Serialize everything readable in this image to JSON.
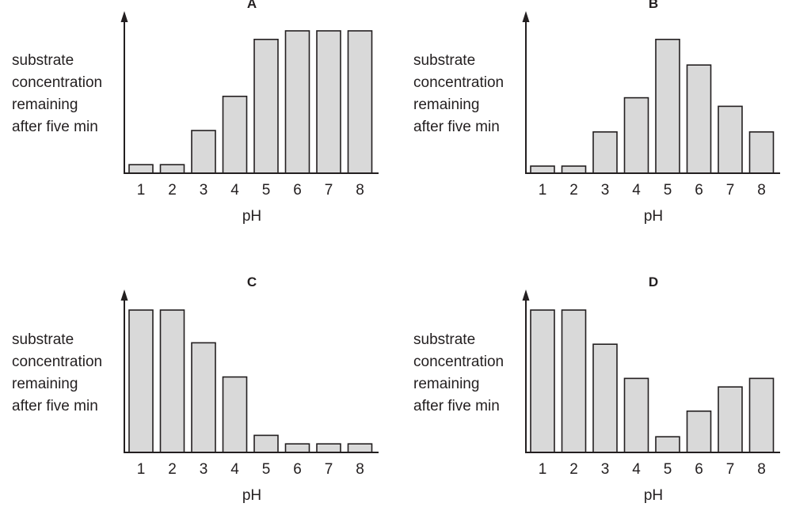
{
  "chart_data": [
    {
      "type": "bar",
      "title": "A",
      "xlabel": "pH",
      "ylabel": [
        "substrate",
        "concentration",
        "remaining",
        "after five min"
      ],
      "categories": [
        "1",
        "2",
        "3",
        "4",
        "5",
        "6",
        "7",
        "8"
      ],
      "values": [
        0.06,
        0.06,
        0.3,
        0.54,
        0.94,
        1.0,
        1.0,
        1.0
      ],
      "ylim": [
        0,
        1.1
      ],
      "grid": false
    },
    {
      "type": "bar",
      "title": "B",
      "xlabel": "pH",
      "ylabel": [
        "substrate",
        "concentration",
        "remaining",
        "after five min"
      ],
      "categories": [
        "1",
        "2",
        "3",
        "4",
        "5",
        "6",
        "7",
        "8"
      ],
      "values": [
        0.05,
        0.05,
        0.29,
        0.53,
        0.94,
        0.76,
        0.47,
        0.29
      ],
      "ylim": [
        0,
        1.1
      ],
      "grid": false
    },
    {
      "type": "bar",
      "title": "C",
      "xlabel": "pH",
      "ylabel": [
        "substrate",
        "concentration",
        "remaining",
        "after five min"
      ],
      "categories": [
        "1",
        "2",
        "3",
        "4",
        "5",
        "6",
        "7",
        "8"
      ],
      "values": [
        1.0,
        1.0,
        0.77,
        0.53,
        0.12,
        0.06,
        0.06,
        0.06
      ],
      "ylim": [
        0,
        1.1
      ],
      "grid": false
    },
    {
      "type": "bar",
      "title": "D",
      "xlabel": "pH",
      "ylabel": [
        "substrate",
        "concentration",
        "remaining",
        "after five min"
      ],
      "categories": [
        "1",
        "2",
        "3",
        "4",
        "5",
        "6",
        "7",
        "8"
      ],
      "values": [
        1.0,
        1.0,
        0.76,
        0.52,
        0.11,
        0.29,
        0.46,
        0.52
      ],
      "ylim": [
        0,
        1.1
      ],
      "grid": false
    }
  ],
  "colors": {
    "bar_fill": "#d9d9d9",
    "bar_stroke": "#231f20",
    "axis": "#231f20",
    "text": "#231f20"
  }
}
